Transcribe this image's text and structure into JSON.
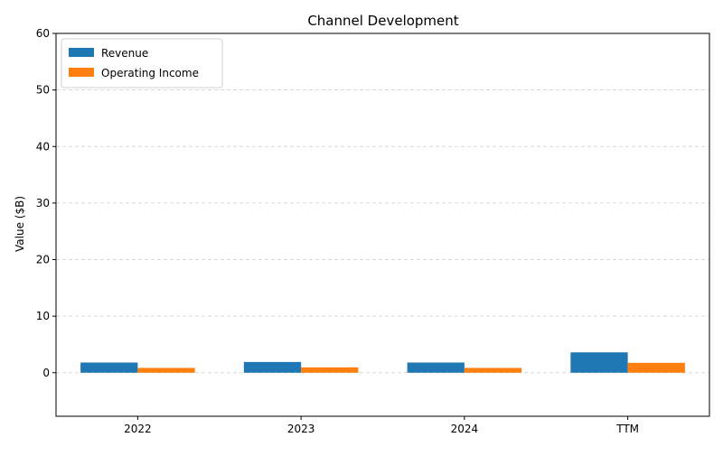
{
  "chart_data": {
    "type": "bar",
    "title": "Channel Development",
    "xlabel": "",
    "ylabel": "Value ($B)",
    "categories": [
      "2022",
      "2023",
      "2024",
      "TTM"
    ],
    "series": [
      {
        "name": "Revenue",
        "color": "#1f77b4",
        "values": [
          1.8,
          1.9,
          1.8,
          3.6
        ]
      },
      {
        "name": "Operating Income",
        "color": "#ff7f0e",
        "values": [
          0.85,
          0.95,
          0.85,
          1.75
        ]
      }
    ],
    "ylim": [
      -7.7,
      60
    ],
    "yticks": [
      0,
      10,
      20,
      30,
      40,
      50,
      60
    ],
    "grid": true,
    "legend": "top-left"
  }
}
